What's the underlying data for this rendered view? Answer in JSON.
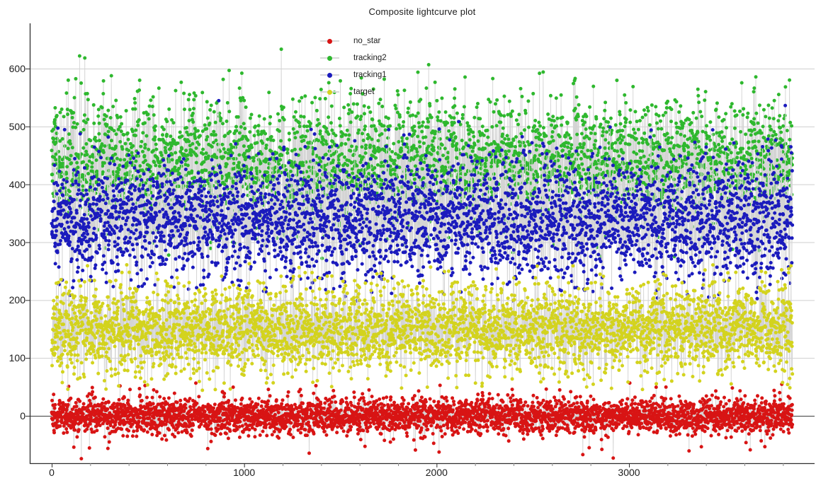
{
  "chart_data": {
    "type": "scatter",
    "title": "Composite lightcurve plot",
    "xlabel": "",
    "ylabel": "",
    "x_ticks": [
      0,
      1000,
      2000,
      3000
    ],
    "x_minor_tick_step": 200,
    "x_minor_tick_max": 3900,
    "y_ticks": [
      0,
      100,
      200,
      300,
      400,
      500,
      600
    ],
    "x_axis_range": [
      -114,
      3960
    ],
    "y_axis_range": [
      -82,
      678
    ],
    "n_samples": 3850,
    "grid": "horizontal-gridlines",
    "legend_position": "top-inside-left-of-center",
    "background": "#ffffff",
    "connector_line_color": "#d4d4d4",
    "gridline_color": "#cfcfcf",
    "zero_line_color": "#3d3d3d",
    "axis_color": "#2f2f2f",
    "series": [
      {
        "name": "no_star",
        "color": "#d81414",
        "mean": 0,
        "std": 15,
        "min": -76,
        "max": 58,
        "outlier_rate": 0.05,
        "outlier_scale": 2.3
      },
      {
        "name": "tracking2",
        "color": "#2eb82e",
        "mean": 432,
        "std": 56,
        "min": 272,
        "max": 652,
        "outlier_rate": 0,
        "outlier_scale": 1
      },
      {
        "name": "tracking1",
        "color": "#1b1bbd",
        "mean": 338,
        "std": 52,
        "min": 196,
        "max": 548,
        "outlier_rate": 0,
        "outlier_scale": 1
      },
      {
        "name": "target",
        "color": "#d3d31e",
        "mean": 149,
        "std": 38,
        "min": 44,
        "max": 264,
        "outlier_rate": 0.04,
        "outlier_scale": 1.6
      }
    ],
    "legend": [
      {
        "label": "no_star",
        "color": "#d81414"
      },
      {
        "label": "tracking2",
        "color": "#2eb82e"
      },
      {
        "label": "tracking1",
        "color": "#1b1bbd"
      },
      {
        "label": "target",
        "color": "#d3d31e"
      }
    ]
  }
}
